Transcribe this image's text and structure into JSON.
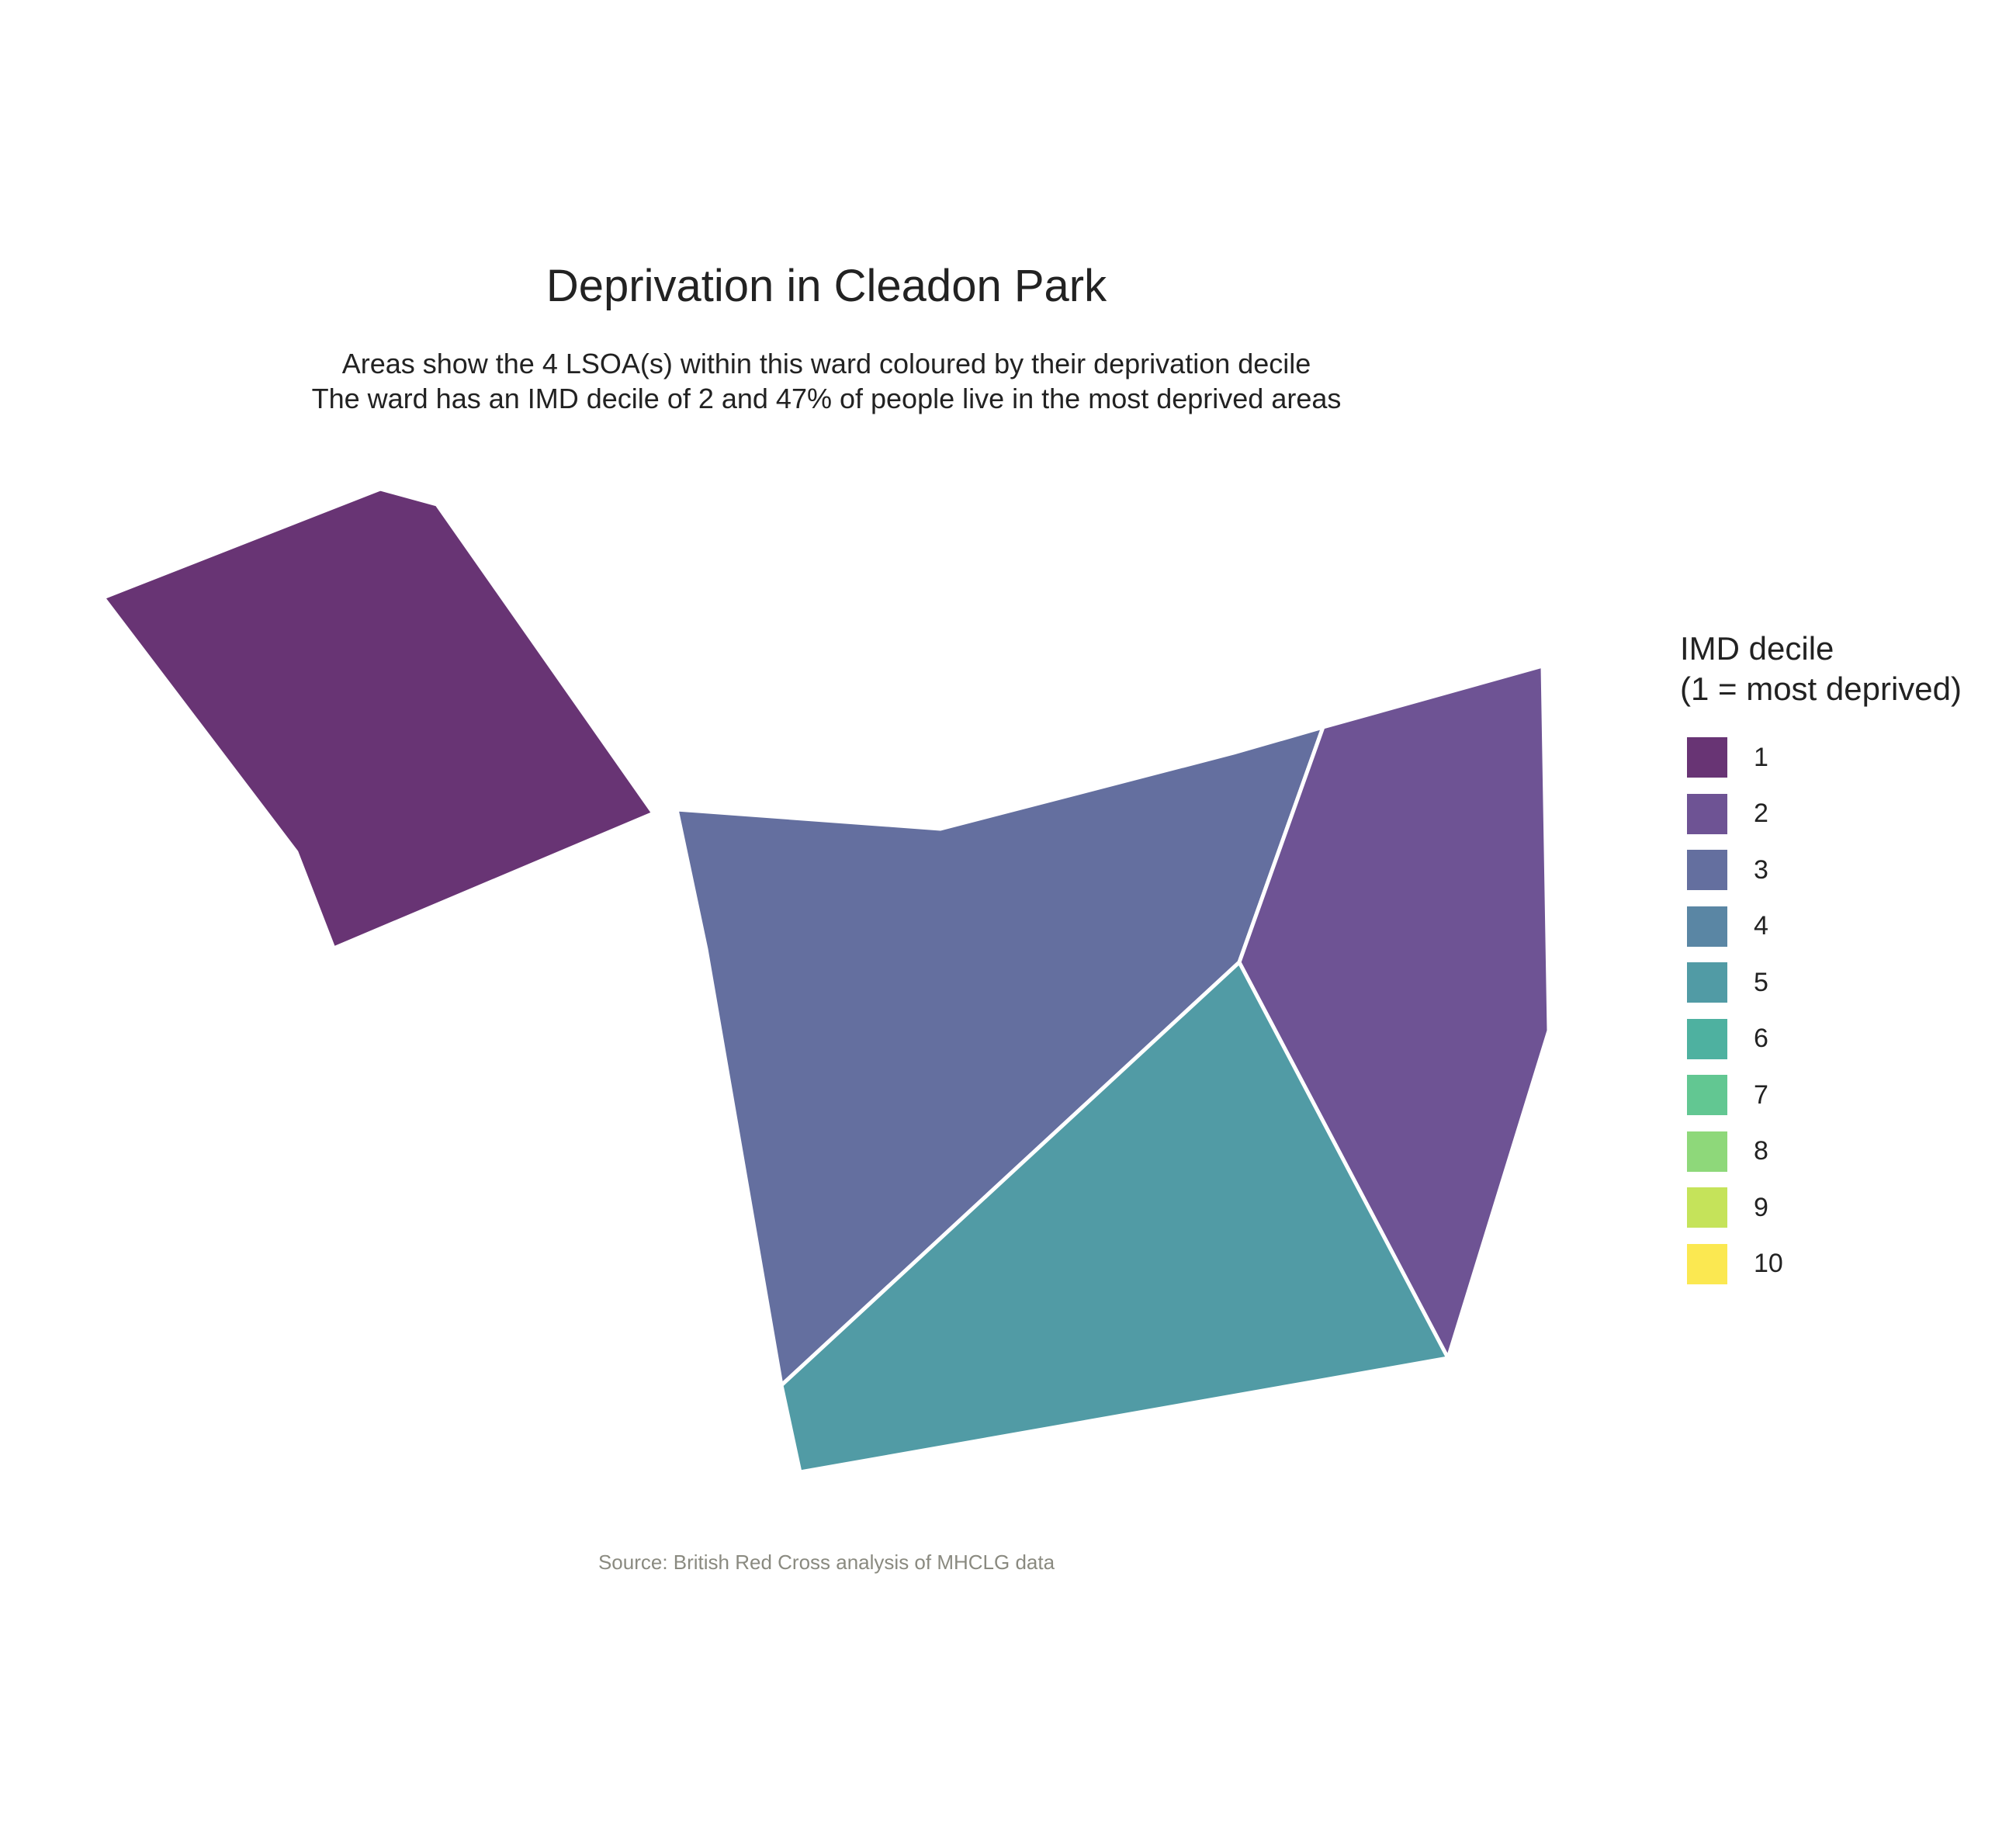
{
  "title": "Deprivation in Cleadon Park",
  "subtitle": {
    "line1": "Areas show the 4 LSOA(s) within this ward coloured by their deprivation decile",
    "line2": "The ward has an IMD decile of 2 and 47% of people live in the most deprived areas"
  },
  "caption": "Source: British Red Cross analysis of MHCLG data",
  "legend": {
    "title_line1": "IMD decile",
    "title_line2": "(1 = most deprived)",
    "items": [
      {
        "label": "1",
        "color": "#683474"
      },
      {
        "label": "2",
        "color": "#6e5394"
      },
      {
        "label": "3",
        "color": "#646f9f"
      },
      {
        "label": "4",
        "color": "#5a86a4"
      },
      {
        "label": "5",
        "color": "#519ba5"
      },
      {
        "label": "6",
        "color": "#4eb1a0"
      },
      {
        "label": "7",
        "color": "#62c792"
      },
      {
        "label": "8",
        "color": "#8ed87a"
      },
      {
        "label": "9",
        "color": "#c5e35a"
      },
      {
        "label": "10",
        "color": "#fbe851"
      }
    ]
  },
  "areas": [
    {
      "id": "lsoa-a",
      "decile": 1
    },
    {
      "id": "lsoa-b",
      "decile": 3
    },
    {
      "id": "lsoa-c",
      "decile": 2
    },
    {
      "id": "lsoa-d",
      "decile": 5
    }
  ]
}
